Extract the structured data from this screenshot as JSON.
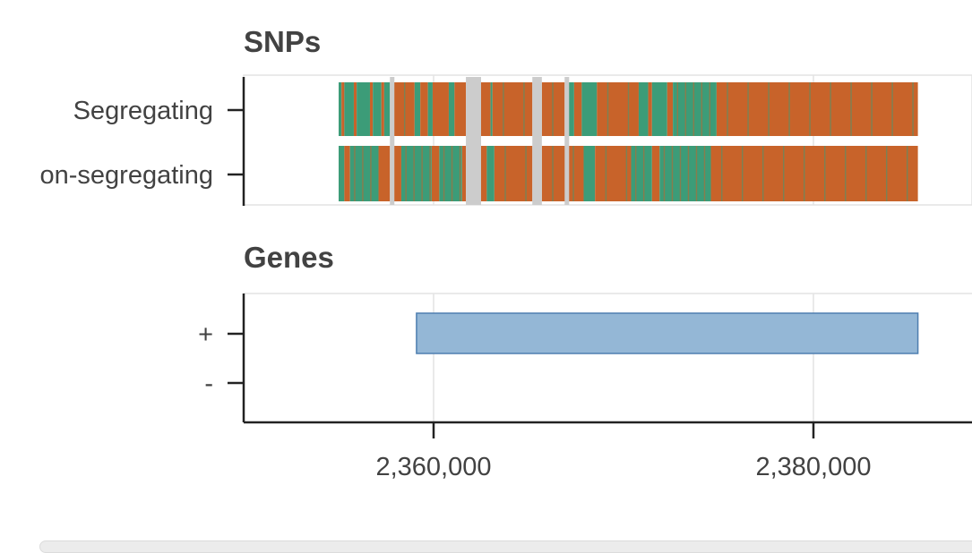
{
  "chart_data": [
    {
      "type": "heatmap",
      "title": "SNPs",
      "categories": [
        "Segregating",
        "on-segregating"
      ],
      "xlim": [
        2355000,
        2385500
      ],
      "grid": true,
      "colors": {
        "class_a": "#c8632a",
        "class_b": "#3c9c78",
        "gap": "#cccccc",
        "grid": "#e3e3e3"
      },
      "gaps": [
        [
          2357700,
          2357900
        ],
        [
          2361700,
          2362500
        ],
        [
          2365200,
          2365700
        ],
        [
          2366900,
          2367050
        ]
      ],
      "tracks": [
        {
          "name": "Segregating",
          "segments": [
            {
              "start": 2355000,
              "end": 2355150,
              "value": "class_b"
            },
            {
              "start": 2355150,
              "end": 2355300,
              "value": "class_a"
            },
            {
              "start": 2355300,
              "end": 2355800,
              "value": "class_b"
            },
            {
              "start": 2355800,
              "end": 2355950,
              "value": "class_a"
            },
            {
              "start": 2355950,
              "end": 2356650,
              "value": "class_b"
            },
            {
              "start": 2356650,
              "end": 2356800,
              "value": "class_a"
            },
            {
              "start": 2356800,
              "end": 2357250,
              "value": "class_b"
            },
            {
              "start": 2357250,
              "end": 2357400,
              "value": "class_a"
            },
            {
              "start": 2357400,
              "end": 2357700,
              "value": "class_b"
            },
            {
              "start": 2357900,
              "end": 2359000,
              "value": "class_a"
            },
            {
              "start": 2359000,
              "end": 2359300,
              "value": "class_b"
            },
            {
              "start": 2359300,
              "end": 2359700,
              "value": "class_a"
            },
            {
              "start": 2359700,
              "end": 2359950,
              "value": "class_b"
            },
            {
              "start": 2359950,
              "end": 2360800,
              "value": "class_a"
            },
            {
              "start": 2360800,
              "end": 2361100,
              "value": "class_b"
            },
            {
              "start": 2361100,
              "end": 2361700,
              "value": "class_a"
            },
            {
              "start": 2362500,
              "end": 2363000,
              "value": "class_a"
            },
            {
              "start": 2363000,
              "end": 2363100,
              "value": "class_b"
            },
            {
              "start": 2363100,
              "end": 2365200,
              "value": "class_a"
            },
            {
              "start": 2365700,
              "end": 2366900,
              "value": "class_a"
            },
            {
              "start": 2367050,
              "end": 2367400,
              "value": "class_b"
            },
            {
              "start": 2367400,
              "end": 2367800,
              "value": "class_a"
            },
            {
              "start": 2367800,
              "end": 2368600,
              "value": "class_b"
            },
            {
              "start": 2368600,
              "end": 2370800,
              "value": "class_a"
            },
            {
              "start": 2370800,
              "end": 2371300,
              "value": "class_b"
            },
            {
              "start": 2371300,
              "end": 2371500,
              "value": "class_a"
            },
            {
              "start": 2371500,
              "end": 2372300,
              "value": "class_b"
            },
            {
              "start": 2372300,
              "end": 2372600,
              "value": "class_a"
            },
            {
              "start": 2372600,
              "end": 2374900,
              "value": "class_b"
            },
            {
              "start": 2374900,
              "end": 2385500,
              "value": "class_a"
            }
          ]
        },
        {
          "name": "on-segregating",
          "segments": [
            {
              "start": 2355000,
              "end": 2355300,
              "value": "class_b"
            },
            {
              "start": 2355300,
              "end": 2355600,
              "value": "class_a"
            },
            {
              "start": 2355600,
              "end": 2357100,
              "value": "class_b"
            },
            {
              "start": 2357100,
              "end": 2357700,
              "value": "class_a"
            },
            {
              "start": 2357900,
              "end": 2358300,
              "value": "class_a"
            },
            {
              "start": 2358300,
              "end": 2359900,
              "value": "class_b"
            },
            {
              "start": 2359900,
              "end": 2360300,
              "value": "class_a"
            },
            {
              "start": 2360300,
              "end": 2361500,
              "value": "class_b"
            },
            {
              "start": 2361500,
              "end": 2361700,
              "value": "class_a"
            },
            {
              "start": 2362500,
              "end": 2362800,
              "value": "class_a"
            },
            {
              "start": 2362800,
              "end": 2363200,
              "value": "class_b"
            },
            {
              "start": 2363200,
              "end": 2365200,
              "value": "class_a"
            },
            {
              "start": 2365700,
              "end": 2367900,
              "value": "class_a"
            },
            {
              "start": 2367900,
              "end": 2368500,
              "value": "class_b"
            },
            {
              "start": 2368500,
              "end": 2370400,
              "value": "class_a"
            },
            {
              "start": 2370400,
              "end": 2371500,
              "value": "class_b"
            },
            {
              "start": 2371500,
              "end": 2371900,
              "value": "class_a"
            },
            {
              "start": 2371900,
              "end": 2374600,
              "value": "class_b"
            },
            {
              "start": 2374600,
              "end": 2385500,
              "value": "class_a"
            }
          ]
        }
      ]
    },
    {
      "type": "bar",
      "title": "Genes",
      "categories": [
        "+",
        "-"
      ],
      "xlim": [
        2355000,
        2385500
      ],
      "x_ticks": [
        2360000,
        2380000
      ],
      "x_tick_labels": [
        "2,360,000",
        "2,380,000"
      ],
      "grid": true,
      "colors": {
        "gene_fill": "#94b7d6",
        "gene_stroke": "#4e7fb0"
      },
      "genes": [
        {
          "strand": "+",
          "start": 2359100,
          "end": 2385500
        }
      ]
    }
  ]
}
